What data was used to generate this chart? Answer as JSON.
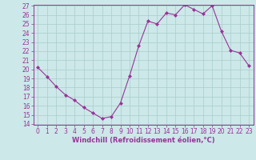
{
  "x": [
    0,
    1,
    2,
    3,
    4,
    5,
    6,
    7,
    8,
    9,
    10,
    11,
    12,
    13,
    14,
    15,
    16,
    17,
    18,
    19,
    20,
    21,
    22,
    23
  ],
  "y": [
    20.2,
    19.2,
    18.1,
    17.2,
    16.6,
    15.8,
    15.2,
    14.6,
    14.8,
    16.3,
    19.3,
    22.6,
    25.3,
    25.0,
    26.2,
    26.0,
    27.1,
    26.6,
    26.1,
    27.0,
    24.2,
    22.1,
    21.8,
    20.4
  ],
  "line_color": "#993399",
  "marker": "D",
  "marker_size": 2,
  "line_width": 0.8,
  "bg_color": "#cce8e8",
  "grid_color": "#aacccc",
  "axis_color": "#993399",
  "xlabel": "Windchill (Refroidissement éolien,°C)",
  "xlabel_fontsize": 6.0,
  "tick_fontsize": 5.5,
  "ylim": [
    14,
    27
  ],
  "xlim": [
    -0.5,
    23.5
  ],
  "yticks": [
    14,
    15,
    16,
    17,
    18,
    19,
    20,
    21,
    22,
    23,
    24,
    25,
    26,
    27
  ],
  "xticks": [
    0,
    1,
    2,
    3,
    4,
    5,
    6,
    7,
    8,
    9,
    10,
    11,
    12,
    13,
    14,
    15,
    16,
    17,
    18,
    19,
    20,
    21,
    22,
    23
  ]
}
